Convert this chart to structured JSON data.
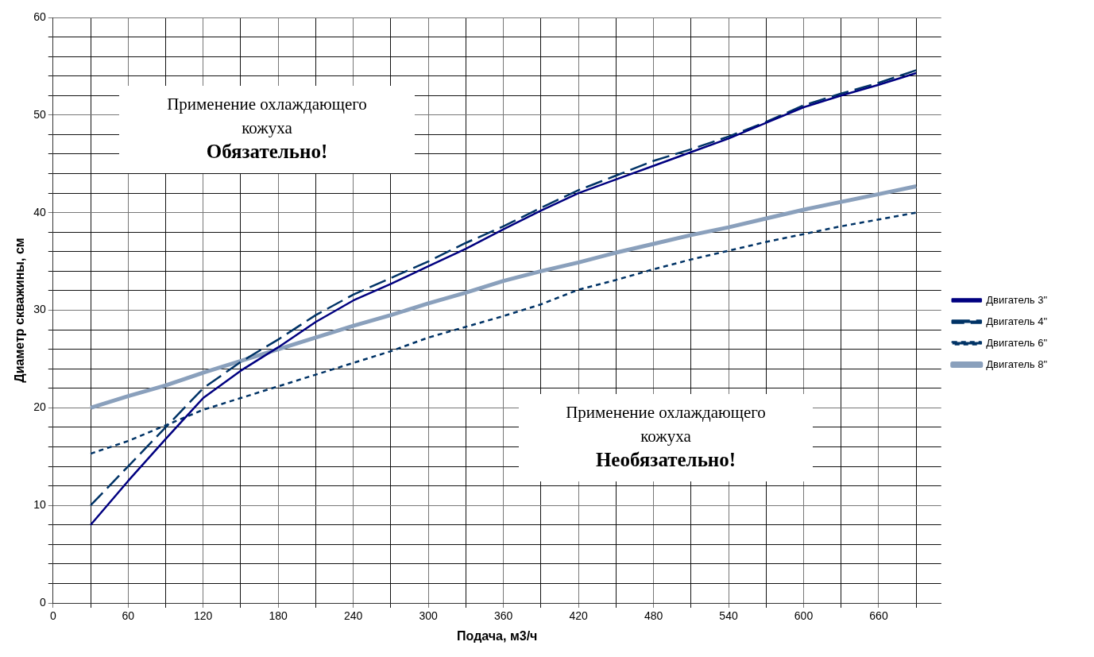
{
  "chart_data": {
    "type": "line",
    "xlabel": "Подача, м3/ч",
    "ylabel": "Диаметр скважины, см",
    "x": [
      30,
      60,
      90,
      120,
      150,
      180,
      210,
      240,
      270,
      300,
      330,
      360,
      390,
      420,
      450,
      480,
      510,
      540,
      570,
      600,
      630,
      660,
      690
    ],
    "xlim": [
      0,
      710
    ],
    "xticks": [
      0,
      {
        "value": 30,
        "label": null
      },
      60,
      {
        "value": 90,
        "label": null
      },
      120,
      {
        "value": 150,
        "label": null
      },
      180,
      {
        "value": 210,
        "label": null
      },
      240,
      {
        "value": 270,
        "label": null
      },
      300,
      {
        "value": 330,
        "label": null
      },
      360,
      {
        "value": 390,
        "label": null
      },
      420,
      {
        "value": 450,
        "label": null
      },
      480,
      {
        "value": 510,
        "label": null
      },
      540,
      {
        "value": 570,
        "label": null
      },
      600,
      {
        "value": 630,
        "label": null
      },
      660,
      {
        "value": 690,
        "label": null
      }
    ],
    "ylim": [
      0,
      60
    ],
    "yticks": [
      0,
      {
        "value": 2,
        "label": null
      },
      {
        "value": 4,
        "label": null
      },
      {
        "value": 6,
        "label": null
      },
      {
        "value": 8,
        "label": null
      },
      10,
      {
        "value": 12,
        "label": null
      },
      {
        "value": 14,
        "label": null
      },
      {
        "value": 16,
        "label": null
      },
      {
        "value": 18,
        "label": null
      },
      20,
      {
        "value": 22,
        "label": null
      },
      {
        "value": 24,
        "label": null
      },
      {
        "value": 26,
        "label": null
      },
      {
        "value": 28,
        "label": null
      },
      30,
      {
        "value": 32,
        "label": null
      },
      {
        "value": 34,
        "label": null
      },
      {
        "value": 36,
        "label": null
      },
      {
        "value": 38,
        "label": null
      },
      40,
      {
        "value": 42,
        "label": null
      },
      {
        "value": 44,
        "label": null
      },
      {
        "value": 46,
        "label": null
      },
      {
        "value": 48,
        "label": null
      },
      50,
      {
        "value": 52,
        "label": null
      },
      {
        "value": 54,
        "label": null
      },
      {
        "value": 56,
        "label": null
      },
      {
        "value": 58,
        "label": null
      },
      60
    ],
    "grid": true,
    "legend": "right",
    "marker": "none",
    "series": [
      {
        "name": "Двигатель 3\"",
        "color": "#000080",
        "line_style": "solid",
        "values": [
          8,
          12.5,
          16.8,
          21,
          23.8,
          26.2,
          28.8,
          31,
          32.7,
          34.5,
          36.3,
          38.3,
          40.2,
          42,
          43.4,
          44.8,
          46.2,
          47.6,
          49.2,
          50.8,
          52,
          53.1,
          54.3
        ]
      },
      {
        "name": "Двигатель 4\"",
        "color": "#003366",
        "line_style": "dashed",
        "values": [
          10,
          14,
          18,
          22,
          24.7,
          27,
          29.5,
          31.6,
          33.3,
          35,
          36.9,
          38.6,
          40.5,
          42.3,
          43.8,
          45.3,
          46.5,
          47.8,
          49.3,
          51,
          52.2,
          53.3,
          54.6
        ]
      },
      {
        "name": "Двигатель 6\"",
        "color": "#003366",
        "line_style": "dotted",
        "values": [
          15.3,
          16.6,
          18.2,
          19.8,
          21,
          22.2,
          23.4,
          24.6,
          25.8,
          27.2,
          28.3,
          29.4,
          30.6,
          32.1,
          33.1,
          34.2,
          35.2,
          36.1,
          37,
          37.8,
          38.6,
          39.3,
          40
        ]
      },
      {
        "name": "Двигатель 8\"",
        "color": "#8aa0bc",
        "line_style": "solid",
        "values": [
          20,
          21.2,
          22.3,
          23.6,
          24.8,
          26,
          27.2,
          28.4,
          29.5,
          30.7,
          31.8,
          33,
          34,
          34.9,
          35.9,
          36.8,
          37.7,
          38.5,
          39.4,
          40.3,
          41.1,
          41.9,
          42.7
        ]
      }
    ],
    "annotations": [
      "Применение охлаждающего\nкожуха\nОбязательно!",
      "Применение охлаждающего\nкожуха\nНеобязательно!"
    ]
  }
}
